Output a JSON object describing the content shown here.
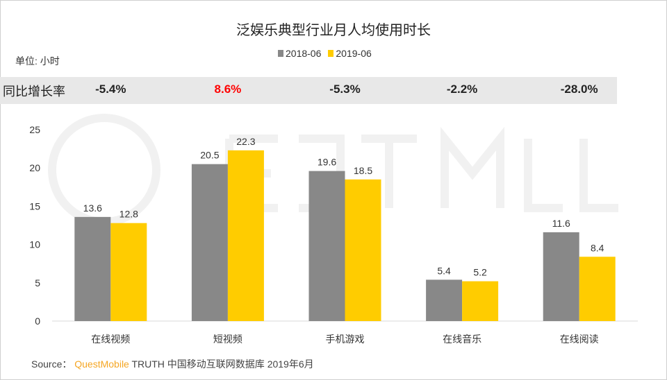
{
  "chart_data": {
    "type": "bar",
    "title": "泛娱乐典型行业月人均使用时长",
    "unit_label": "单位: 小时",
    "categories": [
      "在线视频",
      "短视频",
      "手机游戏",
      "在线音乐",
      "在线阅读"
    ],
    "series": [
      {
        "name": "2018-06",
        "color": "#888888",
        "values": [
          13.6,
          20.5,
          19.6,
          5.4,
          11.6
        ]
      },
      {
        "name": "2019-06",
        "color": "#ffcc00",
        "values": [
          12.8,
          22.3,
          18.5,
          5.2,
          8.4
        ]
      }
    ],
    "ylim": [
      0,
      25
    ],
    "yticks": [
      0,
      5,
      10,
      15,
      20,
      25
    ],
    "grid": false,
    "legend_position": "top",
    "growth_label": "同比增长率",
    "growth": [
      {
        "text": "-5.4%",
        "color": "#222222"
      },
      {
        "text": "8.6%",
        "color": "#ff0000"
      },
      {
        "text": "-5.3%",
        "color": "#222222"
      },
      {
        "text": "-2.2%",
        "color": "#222222"
      },
      {
        "text": "-28.0%",
        "color": "#222222"
      }
    ]
  },
  "watermark": "QUEST MOBILE",
  "source": {
    "prefix": "Source：",
    "brand": "QuestMobile",
    "rest": " TRUTH 中国移动互联网数据库 2019年6月"
  }
}
